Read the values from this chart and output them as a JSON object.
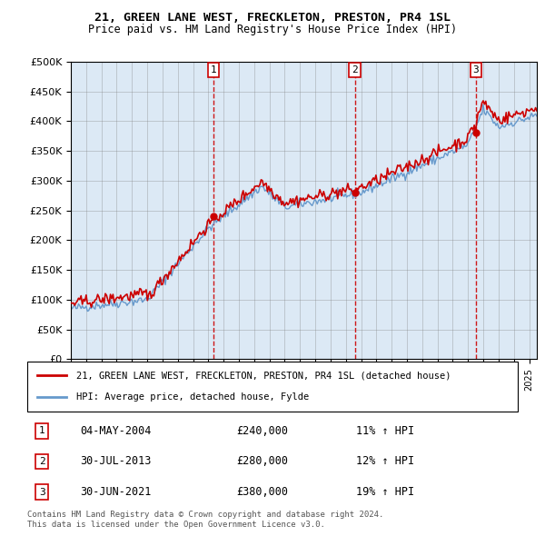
{
  "title": "21, GREEN LANE WEST, FRECKLETON, PRESTON, PR4 1SL",
  "subtitle": "Price paid vs. HM Land Registry's House Price Index (HPI)",
  "plot_bg_color": "#dce9f5",
  "ylim": [
    0,
    500000
  ],
  "yticks": [
    0,
    50000,
    100000,
    150000,
    200000,
    250000,
    300000,
    350000,
    400000,
    450000,
    500000
  ],
  "sale_dates": [
    2004.34,
    2013.58,
    2021.5
  ],
  "sale_prices": [
    240000,
    280000,
    380000
  ],
  "sale_labels": [
    "1",
    "2",
    "3"
  ],
  "legend_line1": "21, GREEN LANE WEST, FRECKLETON, PRESTON, PR4 1SL (detached house)",
  "legend_line2": "HPI: Average price, detached house, Fylde",
  "table_rows": [
    {
      "num": "1",
      "date": "04-MAY-2004",
      "price": "£240,000",
      "hpi": "11% ↑ HPI"
    },
    {
      "num": "2",
      "date": "30-JUL-2013",
      "price": "£280,000",
      "hpi": "12% ↑ HPI"
    },
    {
      "num": "3",
      "date": "30-JUN-2021",
      "price": "£380,000",
      "hpi": "19% ↑ HPI"
    }
  ],
  "footer": "Contains HM Land Registry data © Crown copyright and database right 2024.\nThis data is licensed under the Open Government Licence v3.0.",
  "red_color": "#cc0000",
  "blue_color": "#6699cc",
  "dashed_color": "#cc0000"
}
